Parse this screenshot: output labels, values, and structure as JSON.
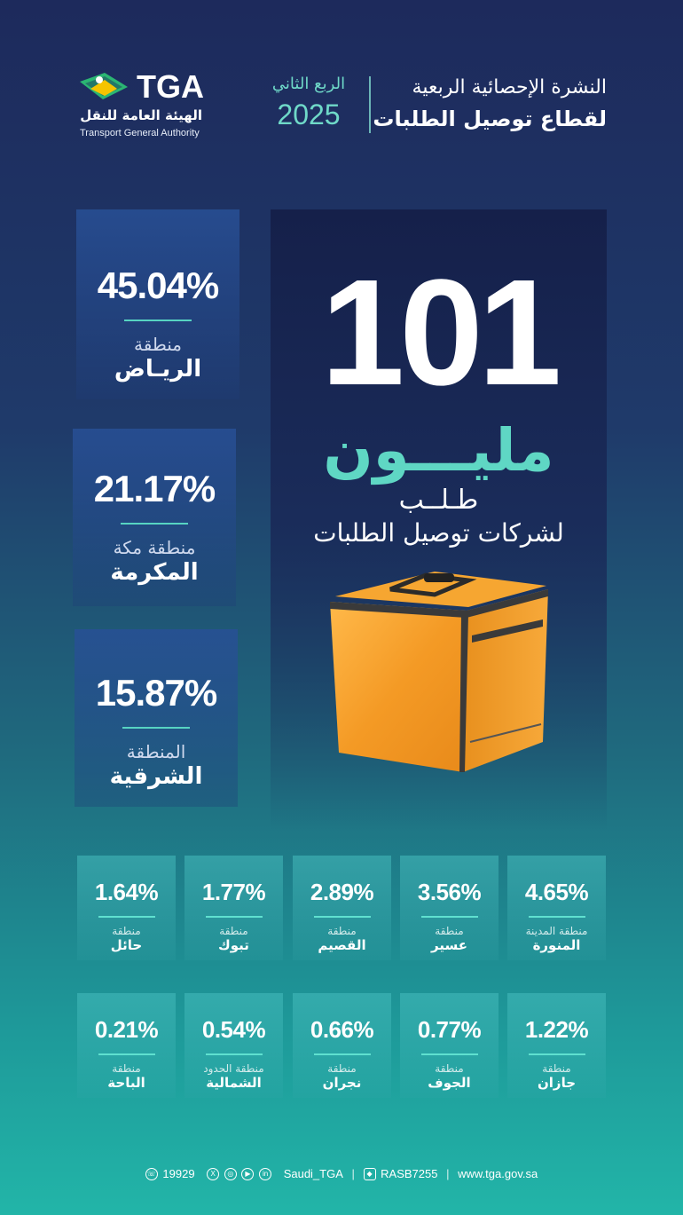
{
  "header": {
    "logo_text": "TGA",
    "logo_arabic": "الهيئة العامة للنقل",
    "logo_english": "Transport General Authority",
    "quarter_label": "الربع الثاني",
    "year": "2025",
    "title_line1": "النشرة الإحصائية الربعية",
    "title_line2": "لقطاع توصيل الطلبات"
  },
  "headline": {
    "number": "101",
    "unit": "مليـــون",
    "label": "طـلــب",
    "sublabel": "لشركات توصيل الطلبات"
  },
  "top_regions": [
    {
      "percent": "45.04%",
      "prefix": "منطقة",
      "name": "الريـاض"
    },
    {
      "percent": "21.17%",
      "prefix": "منطقة مكة",
      "name": "المكرمة"
    },
    {
      "percent": "15.87%",
      "prefix": "المنطقة",
      "name": "الشرقية"
    }
  ],
  "regions_row1": [
    {
      "percent": "4.65%",
      "prefix": "منطقة المدينة",
      "name": "المنورة"
    },
    {
      "percent": "3.56%",
      "prefix": "منطقة",
      "name": "عسير"
    },
    {
      "percent": "2.89%",
      "prefix": "منطقة",
      "name": "القصيم"
    },
    {
      "percent": "1.77%",
      "prefix": "منطقة",
      "name": "تبوك"
    },
    {
      "percent": "1.64%",
      "prefix": "منطقة",
      "name": "حائل"
    }
  ],
  "regions_row2": [
    {
      "percent": "1.22%",
      "prefix": "منطقة",
      "name": "جازان"
    },
    {
      "percent": "0.77%",
      "prefix": "منطقة",
      "name": "الجوف"
    },
    {
      "percent": "0.66%",
      "prefix": "منطقة",
      "name": "نجران"
    },
    {
      "percent": "0.54%",
      "prefix": "منطقة الحدود",
      "name": "الشمالية"
    },
    {
      "percent": "0.21%",
      "prefix": "منطقة",
      "name": "الباحة"
    }
  ],
  "footer": {
    "phone": "19929",
    "social_handle": "Saudi_TGA",
    "rasb": "RASB7255",
    "website": "www.tga.gov.sa"
  },
  "colors": {
    "accent": "#5fd7c4",
    "bag": "#f4a83a"
  }
}
